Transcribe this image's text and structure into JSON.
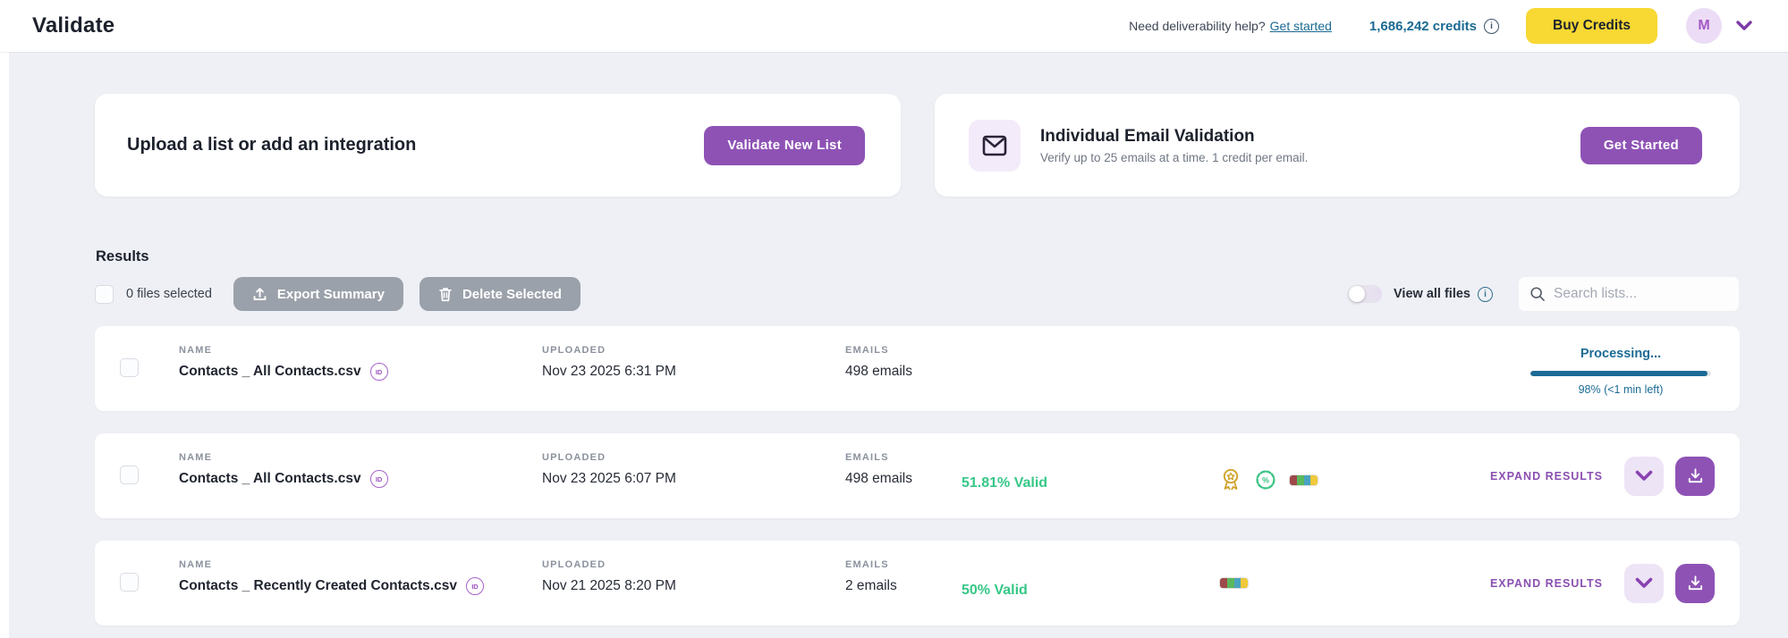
{
  "header": {
    "title": "Validate",
    "help_text": "Need deliverability help?",
    "help_link": "Get started",
    "credits": "1,686,242 credits",
    "buy_credits_label": "Buy Credits",
    "avatar_initial": "M"
  },
  "cards": {
    "upload": {
      "title": "Upload a list or add an integration",
      "button_label": "Validate New List"
    },
    "individual": {
      "title": "Individual Email Validation",
      "subtitle": "Verify up to 25 emails at a time. 1 credit per email.",
      "button_label": "Get Started",
      "icon": "envelope-icon"
    }
  },
  "results": {
    "heading": "Results",
    "selected_text": "0 files selected",
    "export_label": "Export Summary",
    "delete_label": "Delete Selected",
    "view_all_label": "View all files",
    "view_all_toggle_on": false,
    "search_placeholder": "Search lists...",
    "columns": {
      "name": "NAME",
      "uploaded": "UPLOADED",
      "emails": "EMAILS"
    },
    "rows": [
      {
        "name": "Contacts _ All Contacts.csv",
        "has_id_badge": true,
        "uploaded": "Nov 23 2025 6:31 PM",
        "emails": "498 emails",
        "status": "processing",
        "processing_label": "Processing...",
        "progress_text": "98% (<1 min left)",
        "progress_pct": 98
      },
      {
        "name": "Contacts _ All Contacts.csv",
        "has_id_badge": true,
        "uploaded": "Nov 23 2025 6:07 PM",
        "emails": "498 emails",
        "status": "complete",
        "valid": "51.81% Valid",
        "badges": [
          "quality-medal-icon",
          "percent-seal-icon",
          "result-mini-bar"
        ],
        "expand_label": "EXPAND RESULTS"
      },
      {
        "name": "Contacts _ Recently Created Contacts.csv",
        "has_id_badge": true,
        "uploaded": "Nov 21 2025 8:20 PM",
        "emails": "2 emails",
        "status": "complete",
        "valid": "50% Valid",
        "badges": [
          "result-mini-bar"
        ],
        "expand_label": "EXPAND RESULTS"
      }
    ]
  },
  "icons": {
    "id_badge_label": "ID",
    "info": "info-icon",
    "search": "search-icon",
    "export": "upload-tray-icon",
    "delete": "trash-icon",
    "download": "download-tray-icon",
    "chevron": "chevron-down-icon"
  },
  "colors": {
    "accent_purple": "#8e52b5",
    "lavender": "#ede4f6",
    "brand_yellow": "#f8d832",
    "teal_link": "#1b6a93",
    "valid_green": "#36c786",
    "gray_button": "#9ba1aa",
    "background": "#eef0f5",
    "mini_bar_segments": [
      "#9e4a4a",
      "#5cb85c",
      "#4aa3c0",
      "#f0c93c"
    ]
  }
}
